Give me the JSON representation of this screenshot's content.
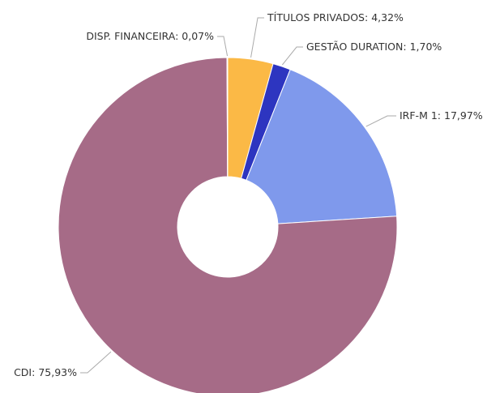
{
  "chart_data": {
    "type": "donut",
    "categories": [
      "TÍTULOS PRIVADOS:",
      "GESTÃO DURATION:",
      "IRF-M 1:",
      "CDI:",
      "DISP. FINANCEIRA:"
    ],
    "values": [
      4.32,
      1.7,
      17.97,
      75.93,
      0.07
    ],
    "value_labels": [
      "4,32%",
      "1,70%",
      "17,97%",
      "75,93%",
      "0,07%"
    ],
    "colors": [
      "#fbb946",
      "#2d35c0",
      "#7f99ec",
      "#a66b87",
      "#6fb3a0"
    ]
  }
}
